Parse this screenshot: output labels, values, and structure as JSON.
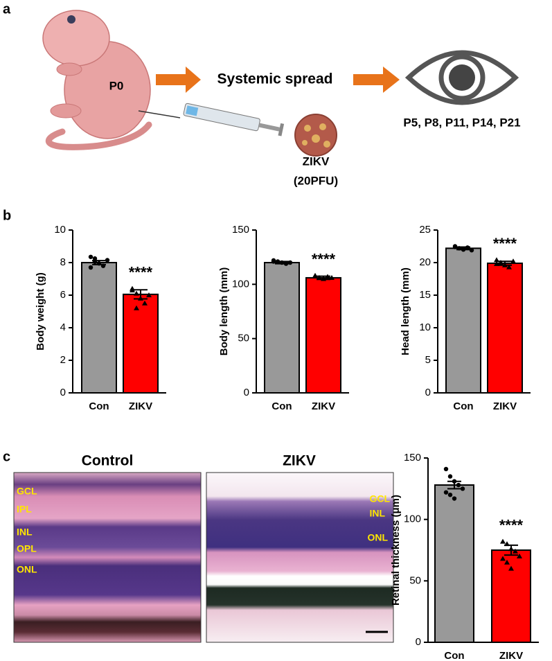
{
  "panel_labels": [
    "a",
    "b",
    "c"
  ],
  "diagram": {
    "age": "P0",
    "route": "Systemic spread",
    "timepoints": "P5, P8, P11, P14, P21",
    "virus": "ZIKV",
    "dose": "(20PFU)"
  },
  "histology": {
    "images": [
      {
        "title": "Control",
        "layers": [
          "GCL",
          "IPL",
          "INL",
          "OPL",
          "ONL"
        ]
      },
      {
        "title": "ZIKV",
        "layers": [
          "GCL",
          "INL",
          "ONL"
        ]
      }
    ]
  },
  "chart_data": [
    {
      "type": "bar",
      "y_label": "Body weight (g)",
      "categories": [
        "Con",
        "ZIKV"
      ],
      "values": [
        8.0,
        6.05
      ],
      "errors": [
        0.12,
        0.28
      ],
      "colors": [
        "#999999",
        "#ff0000"
      ],
      "points": [
        [
          8.35,
          8.05,
          7.95,
          7.8,
          8.15,
          7.7,
          8.25
        ],
        [
          6.4,
          6.1,
          5.8,
          5.5,
          6.0,
          6.3,
          5.2
        ]
      ],
      "annotation": "****",
      "ylim": [
        0,
        10
      ],
      "yticks": [
        0,
        2,
        4,
        6,
        8,
        10
      ]
    },
    {
      "type": "bar",
      "y_label": "Body length (mm)",
      "categories": [
        "Con",
        "ZIKV"
      ],
      "values": [
        120,
        106
      ],
      "errors": [
        1,
        1.5
      ],
      "colors": [
        "#999999",
        "#ff0000"
      ],
      "points": [
        [
          122,
          121,
          120,
          119,
          120,
          121
        ],
        [
          108,
          106,
          105,
          107,
          106
        ]
      ],
      "annotation": "****",
      "ylim": [
        0,
        150
      ],
      "yticks": [
        0,
        50,
        100,
        150
      ]
    },
    {
      "type": "bar",
      "y_label": "Head length (mm)",
      "categories": [
        "Con",
        "ZIKV"
      ],
      "values": [
        22.2,
        19.9
      ],
      "errors": [
        0.2,
        0.3
      ],
      "colors": [
        "#999999",
        "#ff0000"
      ],
      "points": [
        [
          22.5,
          22.2,
          22.0,
          22.3,
          21.9,
          22.4
        ],
        [
          20.4,
          20.0,
          19.6,
          19.3,
          20.2,
          19.8
        ]
      ],
      "annotation": "****",
      "ylim": [
        0,
        25
      ],
      "yticks": [
        0,
        5,
        10,
        15,
        20,
        25
      ]
    },
    {
      "type": "bar",
      "y_label": "Retinal thickness (μm)",
      "categories": [
        "Con",
        "ZIKV"
      ],
      "values": [
        128,
        75
      ],
      "errors": [
        3,
        4
      ],
      "colors": [
        "#999999",
        "#ff0000"
      ],
      "points": [
        [
          141,
          135,
          131,
          128,
          125,
          122,
          120,
          117
        ],
        [
          82,
          80,
          76,
          74,
          70,
          68,
          65,
          60
        ]
      ],
      "annotation": "****",
      "ylim": [
        0,
        150
      ],
      "yticks": [
        0,
        50,
        100,
        150
      ]
    }
  ]
}
